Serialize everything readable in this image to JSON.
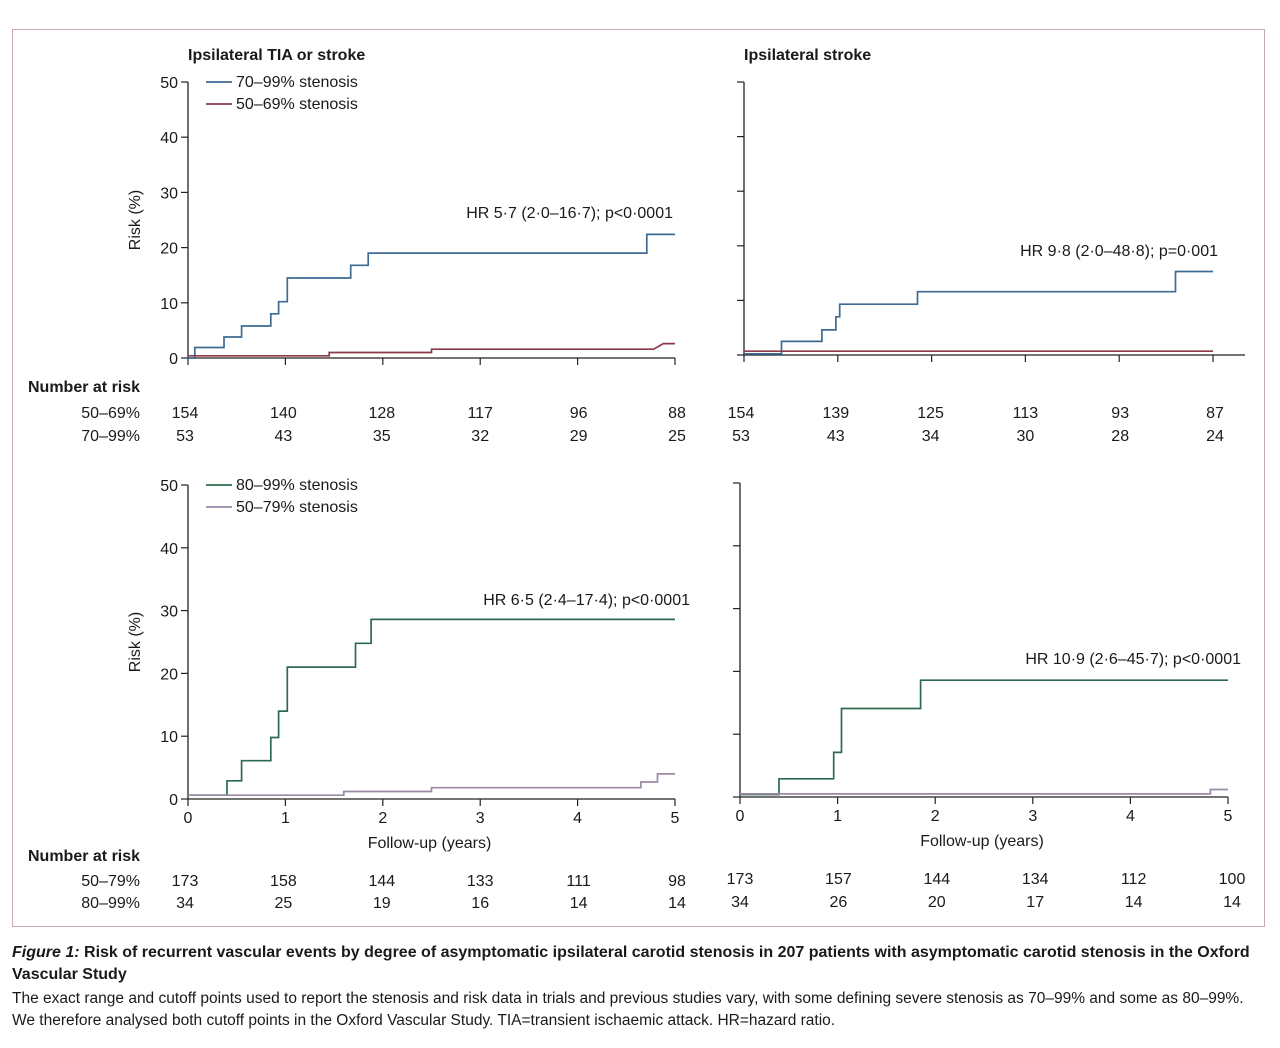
{
  "figure": {
    "number_at_risk_label": "Number at risk",
    "xlabel": "Follow-up (years)",
    "ylabel": "Risk (%)",
    "colors": {
      "blue": "#3d6b93",
      "red": "#8c3a4a",
      "green": "#2e6b4e",
      "purple": "#9a8aa8"
    }
  },
  "chart_data": [
    {
      "type": "line",
      "title": "Ipsilateral TIA or stroke",
      "xlabel": "",
      "ylabel": "Risk (%)",
      "xlim": [
        0,
        5
      ],
      "ylim": [
        0,
        50
      ],
      "yticks": [
        0,
        10,
        20,
        30,
        40,
        50
      ],
      "annotation": "HR 5·7 (2·0–16·7); p<0·0001",
      "legend": [
        "70–99% stenosis",
        "50–69% stenosis"
      ],
      "series": [
        {
          "name": "70–99% stenosis",
          "color": "blue",
          "x": [
            0,
            0.07,
            0.07,
            0.37,
            0.37,
            0.55,
            0.55,
            0.85,
            0.85,
            0.93,
            0.93,
            1.02,
            1.02,
            1.67,
            1.67,
            1.85,
            1.85,
            4.71,
            4.71,
            5.0
          ],
          "y": [
            0,
            0,
            1.9,
            1.9,
            3.8,
            3.8,
            5.8,
            5.8,
            8.0,
            8.0,
            10.2,
            10.2,
            14.5,
            14.5,
            16.8,
            16.8,
            19.0,
            19.0,
            22.4,
            22.4
          ]
        },
        {
          "name": "50–69% stenosis",
          "color": "red",
          "x": [
            0,
            1.45,
            1.45,
            2.5,
            2.5,
            4.78,
            4.88,
            5.0
          ],
          "y": [
            0.4,
            0.4,
            1.0,
            1.0,
            1.6,
            1.6,
            2.6,
            2.6
          ]
        }
      ],
      "risk_table": {
        "rows": [
          {
            "label": "50–69%",
            "values": [
              154,
              140,
              128,
              117,
              96,
              88
            ]
          },
          {
            "label": "70–99%",
            "values": [
              53,
              43,
              35,
              32,
              29,
              25
            ]
          }
        ]
      }
    },
    {
      "type": "line",
      "title": "Ipsilateral stroke",
      "xlabel": "",
      "ylabel": "",
      "xlim": [
        0,
        5
      ],
      "ylim": [
        0,
        50
      ],
      "yticks": [
        0,
        10,
        20,
        30,
        40,
        50
      ],
      "annotation": "HR 9·8 (2·0–48·8); p=0·001",
      "legend": [],
      "series": [
        {
          "name": "",
          "color": "blue",
          "x": [
            0,
            0.4,
            0.4,
            0.83,
            0.83,
            0.98,
            0.98,
            1.02,
            1.02,
            1.85,
            1.85,
            4.6,
            4.6,
            5.0
          ],
          "y": [
            0.2,
            0.2,
            2.5,
            2.5,
            4.6,
            4.6,
            7.0,
            7.0,
            9.3,
            9.3,
            11.6,
            11.6,
            15.3,
            15.3
          ]
        },
        {
          "name": "",
          "color": "red",
          "x": [
            0,
            5.0
          ],
          "y": [
            0.7,
            0.7
          ]
        }
      ],
      "risk_table": {
        "rows": [
          {
            "label": "",
            "values": [
              154,
              139,
              125,
              113,
              93,
              87
            ]
          },
          {
            "label": "",
            "values": [
              53,
              43,
              34,
              30,
              28,
              24
            ]
          }
        ]
      }
    },
    {
      "type": "line",
      "title": "",
      "xlabel": "Follow-up (years)",
      "ylabel": "Risk (%)",
      "xlim": [
        0,
        5
      ],
      "ylim": [
        0,
        50
      ],
      "yticks": [
        0,
        10,
        20,
        30,
        40,
        50
      ],
      "annotation": "HR 6·5 (2·4–17·4); p<0·0001",
      "legend": [
        "80–99% stenosis",
        "50–79% stenosis"
      ],
      "series": [
        {
          "name": "80–99% stenosis",
          "color": "green",
          "x": [
            0,
            0.4,
            0.4,
            0.55,
            0.55,
            0.85,
            0.85,
            0.93,
            0.93,
            1.02,
            1.02,
            1.72,
            1.72,
            1.88,
            1.88,
            5.0
          ],
          "y": [
            0.6,
            0.6,
            2.9,
            2.9,
            6.1,
            6.1,
            9.8,
            9.8,
            14.0,
            14.0,
            21.0,
            21.0,
            24.8,
            24.8,
            28.6,
            28.6
          ]
        },
        {
          "name": "50–79% stenosis",
          "color": "purple",
          "x": [
            0,
            1.6,
            1.6,
            2.5,
            2.5,
            4.65,
            4.65,
            4.82,
            4.82,
            5.0
          ],
          "y": [
            0.6,
            0.6,
            1.2,
            1.2,
            1.8,
            1.8,
            2.7,
            2.7,
            4.0,
            4.0
          ]
        }
      ],
      "risk_table": {
        "rows": [
          {
            "label": "50–79%",
            "values": [
              173,
              158,
              144,
              133,
              111,
              98
            ]
          },
          {
            "label": "80–99%",
            "values": [
              34,
              25,
              19,
              16,
              14,
              14
            ]
          }
        ]
      }
    },
    {
      "type": "line",
      "title": "",
      "xlabel": "Follow-up (years)",
      "ylabel": "",
      "xlim": [
        0,
        5
      ],
      "ylim": [
        0,
        50
      ],
      "yticks": [
        0,
        10,
        20,
        30,
        40,
        50
      ],
      "annotation": "HR 10·9 (2·6–45·7); p<0·0001",
      "legend": [],
      "series": [
        {
          "name": "",
          "color": "green",
          "x": [
            0,
            0.4,
            0.4,
            0.96,
            0.96,
            1.04,
            1.04,
            1.85,
            1.85,
            5.0
          ],
          "y": [
            0.4,
            0.4,
            2.9,
            2.9,
            7.1,
            7.1,
            14.1,
            14.1,
            18.6,
            18.6
          ]
        },
        {
          "name": "",
          "color": "purple",
          "x": [
            0,
            4.82,
            4.82,
            5.0
          ],
          "y": [
            0.5,
            0.5,
            1.2,
            1.2
          ]
        }
      ],
      "risk_table": {
        "rows": [
          {
            "label": "",
            "values": [
              173,
              157,
              144,
              134,
              112,
              100
            ]
          },
          {
            "label": "",
            "values": [
              34,
              26,
              20,
              17,
              14,
              14
            ]
          }
        ]
      }
    }
  ],
  "caption": {
    "lead": "Figure 1:",
    "title": " Risk of recurrent vascular events by degree of asymptomatic ipsilateral carotid stenosis in 207 patients with asymptomatic carotid stenosis in the Oxford Vascular Study",
    "body": "The exact range and cutoff points used to report the stenosis and risk data in trials and previous studies vary, with some defining severe stenosis as 70–99% and some as 80–99%. We therefore analysed both cutoff points in the Oxford Vascular Study. TIA=transient ischaemic attack. HR=hazard ratio."
  }
}
